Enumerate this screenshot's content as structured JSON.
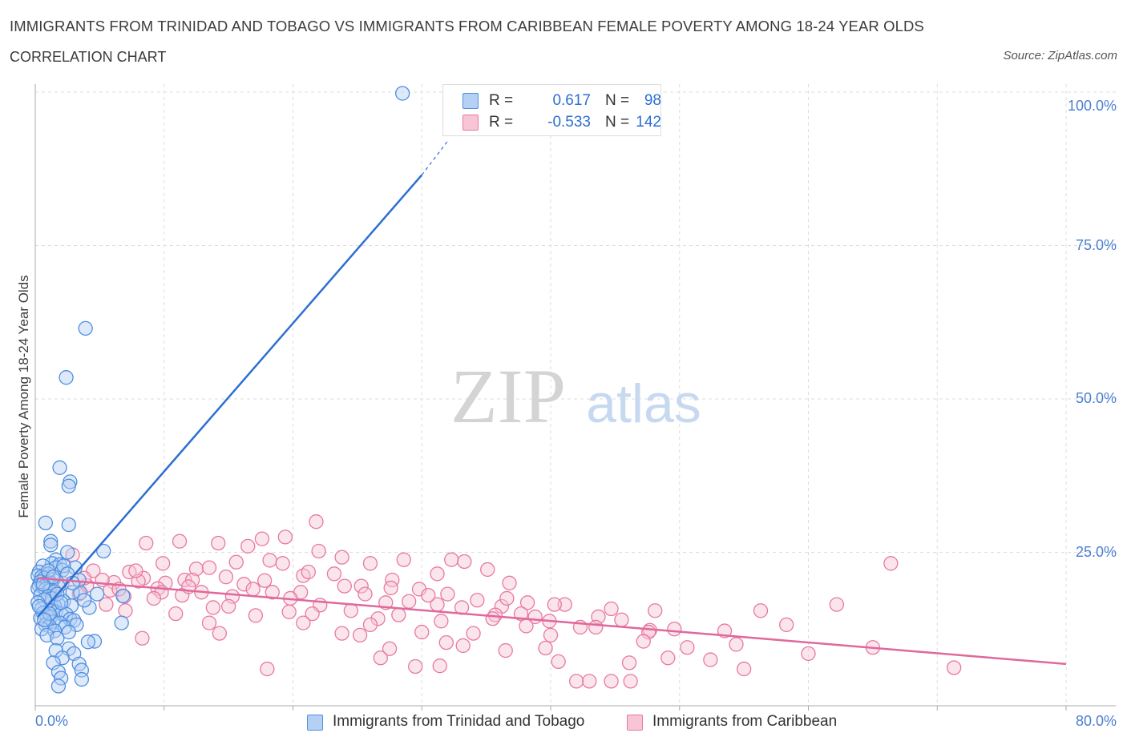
{
  "header": {
    "title": "IMMIGRANTS FROM TRINIDAD AND TOBAGO VS IMMIGRANTS FROM CARIBBEAN FEMALE POVERTY AMONG 18-24 YEAR OLDS",
    "subtitle": "CORRELATION CHART",
    "source": "Source: ZipAtlas.com"
  },
  "watermark": {
    "zip": "ZIP",
    "atlas": "atlas"
  },
  "colors": {
    "blue": "#4f8fe0",
    "blue_fill": "#b5d0f5",
    "blue_line": "#2c6fd1",
    "pink": "#e8799e",
    "pink_fill": "#f7c5d6",
    "pink_line": "#e0689a",
    "tick_label": "#4a7fd1",
    "grid": "#dddddd"
  },
  "legend": {
    "r_label": "R =",
    "n_label": "N =",
    "series1": {
      "r": "0.617",
      "n": "98"
    },
    "series2": {
      "r": "-0.533",
      "n": "142"
    }
  },
  "chart_data": {
    "type": "scatter",
    "title": "IMMIGRANTS FROM TRINIDAD AND TOBAGO VS IMMIGRANTS FROM CARIBBEAN FEMALE POVERTY AMONG 18-24 YEAR OLDS",
    "subtitle": "CORRELATION CHART",
    "xlabel": "",
    "ylabel": "Female Poverty Among 18-24 Year Olds",
    "xlim": [
      0,
      80
    ],
    "ylim": [
      0,
      100
    ],
    "x_ticks": [
      0,
      80
    ],
    "x_tick_labels": [
      "0.0%",
      "80.0%"
    ],
    "y_ticks": [
      25,
      50,
      75,
      100
    ],
    "y_tick_labels": [
      "25.0%",
      "50.0%",
      "75.0%",
      "100.0%"
    ],
    "grid": true,
    "legend_position": "top-center",
    "series": [
      {
        "name": "Immigrants from Trinidad and Tobago",
        "r": 0.617,
        "n": 98,
        "trendline": {
          "x0": 0.2,
          "y0": 14.5,
          "x1": 30,
          "y1": 86.5,
          "dashed_to_x": 32,
          "dashed_to_y": 92
        },
        "points": [
          [
            28.5,
            99.8
          ],
          [
            3.9,
            61.5
          ],
          [
            2.4,
            53.5
          ],
          [
            1.9,
            38.8
          ],
          [
            2.7,
            36.5
          ],
          [
            2.6,
            35.8
          ],
          [
            0.8,
            29.8
          ],
          [
            2.6,
            29.5
          ],
          [
            1.2,
            26.8
          ],
          [
            1.2,
            26.2
          ],
          [
            5.3,
            25.2
          ],
          [
            2.5,
            25.0
          ],
          [
            1.6,
            23.8
          ],
          [
            1.3,
            23.2
          ],
          [
            1.9,
            23.0
          ],
          [
            0.6,
            22.8
          ],
          [
            1.6,
            22.5
          ],
          [
            3.1,
            22.5
          ],
          [
            2.1,
            22.1
          ],
          [
            0.3,
            21.8
          ],
          [
            1.0,
            21.5
          ],
          [
            0.2,
            21.2
          ],
          [
            0.5,
            21.0
          ],
          [
            0.7,
            20.8
          ],
          [
            1.4,
            20.6
          ],
          [
            3.4,
            20.5
          ],
          [
            0.4,
            20.2
          ],
          [
            0.9,
            20.1
          ],
          [
            1.2,
            20.0
          ],
          [
            0.3,
            19.6
          ],
          [
            1.8,
            19.4
          ],
          [
            0.6,
            19.3
          ],
          [
            0.2,
            19.1
          ],
          [
            0.8,
            19.0
          ],
          [
            1.1,
            18.8
          ],
          [
            1.5,
            18.6
          ],
          [
            2.9,
            18.5
          ],
          [
            3.5,
            18.4
          ],
          [
            4.8,
            18.2
          ],
          [
            0.4,
            18.0
          ],
          [
            1.0,
            17.8
          ],
          [
            1.3,
            17.5
          ],
          [
            0.7,
            17.3
          ],
          [
            6.8,
            17.9
          ],
          [
            2.2,
            17.0
          ],
          [
            0.2,
            16.8
          ],
          [
            1.8,
            16.5
          ],
          [
            2.8,
            16.3
          ],
          [
            1.5,
            16.2
          ],
          [
            4.2,
            16.0
          ],
          [
            0.5,
            15.8
          ],
          [
            1.3,
            15.5
          ],
          [
            1.6,
            15.3
          ],
          [
            0.6,
            15.1
          ],
          [
            2.0,
            15.0
          ],
          [
            2.4,
            14.9
          ],
          [
            0.9,
            14.7
          ],
          [
            1.2,
            14.5
          ],
          [
            0.4,
            14.3
          ],
          [
            2.7,
            14.1
          ],
          [
            3.0,
            13.9
          ],
          [
            1.4,
            13.7
          ],
          [
            1.9,
            13.5
          ],
          [
            0.8,
            13.2
          ],
          [
            1.1,
            13.0
          ],
          [
            2.3,
            12.8
          ],
          [
            6.7,
            13.5
          ],
          [
            3.2,
            13.2
          ],
          [
            0.5,
            12.5
          ],
          [
            1.5,
            12.2
          ],
          [
            2.6,
            12.0
          ],
          [
            0.9,
            11.5
          ],
          [
            1.7,
            11.0
          ],
          [
            4.6,
            10.5
          ],
          [
            4.1,
            10.4
          ],
          [
            2.6,
            9.3
          ],
          [
            1.6,
            9.0
          ],
          [
            3.0,
            8.5
          ],
          [
            2.1,
            7.8
          ],
          [
            1.4,
            7.0
          ],
          [
            3.4,
            6.8
          ],
          [
            3.6,
            5.8
          ],
          [
            1.8,
            5.5
          ],
          [
            2.0,
            4.5
          ],
          [
            3.6,
            4.3
          ],
          [
            1.8,
            3.2
          ],
          [
            1.0,
            22.0
          ],
          [
            2.2,
            22.8
          ],
          [
            0.6,
            19.8
          ],
          [
            1.7,
            18.2
          ],
          [
            2.5,
            21.5
          ],
          [
            0.3,
            16.2
          ],
          [
            1.1,
            15.0
          ],
          [
            2.9,
            20.0
          ],
          [
            0.7,
            14.0
          ],
          [
            3.8,
            17.2
          ],
          [
            1.4,
            21.0
          ],
          [
            2.0,
            16.8
          ]
        ]
      },
      {
        "name": "Immigrants from Caribbean",
        "r": -0.533,
        "n": 142,
        "trendline": {
          "x0": 0.2,
          "y0": 20.8,
          "x1": 80,
          "y1": 6.8
        },
        "points": [
          [
            21.8,
            30.0
          ],
          [
            19.4,
            27.5
          ],
          [
            17.6,
            27.2
          ],
          [
            11.2,
            26.8
          ],
          [
            14.2,
            26.5
          ],
          [
            8.6,
            26.5
          ],
          [
            16.5,
            26.0
          ],
          [
            22.0,
            25.2
          ],
          [
            2.9,
            24.6
          ],
          [
            23.8,
            24.2
          ],
          [
            28.6,
            23.8
          ],
          [
            32.3,
            23.8
          ],
          [
            18.2,
            23.7
          ],
          [
            33.3,
            23.5
          ],
          [
            15.6,
            23.4
          ],
          [
            9.9,
            23.2
          ],
          [
            19.2,
            23.2
          ],
          [
            26.0,
            23.2
          ],
          [
            66.4,
            23.2
          ],
          [
            35.1,
            22.2
          ],
          [
            12.5,
            22.3
          ],
          [
            7.3,
            21.8
          ],
          [
            23.2,
            21.5
          ],
          [
            31.2,
            21.5
          ],
          [
            20.8,
            21.2
          ],
          [
            14.8,
            21.0
          ],
          [
            8.4,
            20.8
          ],
          [
            11.6,
            20.5
          ],
          [
            27.7,
            20.5
          ],
          [
            8.0,
            20.3
          ],
          [
            6.1,
            20.1
          ],
          [
            10.1,
            20.0
          ],
          [
            36.8,
            20.0
          ],
          [
            16.2,
            19.8
          ],
          [
            4.0,
            19.6
          ],
          [
            25.3,
            19.5
          ],
          [
            27.6,
            19.2
          ],
          [
            9.5,
            19.1
          ],
          [
            16.9,
            19.0
          ],
          [
            29.8,
            19.0
          ],
          [
            5.8,
            18.8
          ],
          [
            12.9,
            18.5
          ],
          [
            18.4,
            18.5
          ],
          [
            20.6,
            18.5
          ],
          [
            25.6,
            18.2
          ],
          [
            3.4,
            18.2
          ],
          [
            1.4,
            18.0
          ],
          [
            11.4,
            18.0
          ],
          [
            6.9,
            17.8
          ],
          [
            15.3,
            17.8
          ],
          [
            19.8,
            17.5
          ],
          [
            32.0,
            18.2
          ],
          [
            34.3,
            17.2
          ],
          [
            29.0,
            17.0
          ],
          [
            38.2,
            16.8
          ],
          [
            31.2,
            16.5
          ],
          [
            41.1,
            16.5
          ],
          [
            22.1,
            16.4
          ],
          [
            62.2,
            16.5
          ],
          [
            36.2,
            16.2
          ],
          [
            13.8,
            16.0
          ],
          [
            44.7,
            15.8
          ],
          [
            7.0,
            15.5
          ],
          [
            24.5,
            15.5
          ],
          [
            56.3,
            15.5
          ],
          [
            19.7,
            15.3
          ],
          [
            48.1,
            15.5
          ],
          [
            37.7,
            15.0
          ],
          [
            10.9,
            15.0
          ],
          [
            21.5,
            15.0
          ],
          [
            35.7,
            14.8
          ],
          [
            28.2,
            14.8
          ],
          [
            17.1,
            14.7
          ],
          [
            38.8,
            14.5
          ],
          [
            43.7,
            14.5
          ],
          [
            26.6,
            14.2
          ],
          [
            35.5,
            14.2
          ],
          [
            31.5,
            13.8
          ],
          [
            39.9,
            13.8
          ],
          [
            20.8,
            13.5
          ],
          [
            13.5,
            13.5
          ],
          [
            26.0,
            13.2
          ],
          [
            38.1,
            13.0
          ],
          [
            58.3,
            13.2
          ],
          [
            43.5,
            12.8
          ],
          [
            49.6,
            12.5
          ],
          [
            53.5,
            12.2
          ],
          [
            30.0,
            12.0
          ],
          [
            14.3,
            11.8
          ],
          [
            23.8,
            11.8
          ],
          [
            47.7,
            12.3
          ],
          [
            47.6,
            12.0
          ],
          [
            34.0,
            11.8
          ],
          [
            25.2,
            11.5
          ],
          [
            40.0,
            11.5
          ],
          [
            8.3,
            11.0
          ],
          [
            31.9,
            10.3
          ],
          [
            47.2,
            10.5
          ],
          [
            54.4,
            10.0
          ],
          [
            33.2,
            9.8
          ],
          [
            39.6,
            9.4
          ],
          [
            50.6,
            9.5
          ],
          [
            27.5,
            9.3
          ],
          [
            49.1,
            7.8
          ],
          [
            46.1,
            7.0
          ],
          [
            55.0,
            6.0
          ],
          [
            52.4,
            7.5
          ],
          [
            40.6,
            7.2
          ],
          [
            26.8,
            7.8
          ],
          [
            31.4,
            6.5
          ],
          [
            29.5,
            6.4
          ],
          [
            18.0,
            6.0
          ],
          [
            46.2,
            4.0
          ],
          [
            42.0,
            4.0
          ],
          [
            43.0,
            4.0
          ],
          [
            44.7,
            4.0
          ],
          [
            71.3,
            6.2
          ],
          [
            60.0,
            8.5
          ],
          [
            65.0,
            9.5
          ],
          [
            36.5,
            9.0
          ],
          [
            5.5,
            16.5
          ],
          [
            4.5,
            22.0
          ],
          [
            9.8,
            18.5
          ],
          [
            12.2,
            20.5
          ],
          [
            3.8,
            20.8
          ],
          [
            6.5,
            19.0
          ],
          [
            2.1,
            20.0
          ],
          [
            15.0,
            16.2
          ],
          [
            24.0,
            19.5
          ],
          [
            33.1,
            16.0
          ],
          [
            36.6,
            17.5
          ],
          [
            27.2,
            16.8
          ],
          [
            42.3,
            12.8
          ],
          [
            45.5,
            14.0
          ],
          [
            40.3,
            16.5
          ],
          [
            30.5,
            18.0
          ],
          [
            21.2,
            21.8
          ],
          [
            17.8,
            20.4
          ],
          [
            13.5,
            22.5
          ],
          [
            7.8,
            22.0
          ],
          [
            11.9,
            19.4
          ],
          [
            5.2,
            20.5
          ],
          [
            9.2,
            17.5
          ],
          [
            1.0,
            19.2
          ]
        ]
      }
    ]
  },
  "bottom_legend": {
    "series1_label": "Immigrants from Trinidad and Tobago",
    "series2_label": "Immigrants from Caribbean"
  }
}
